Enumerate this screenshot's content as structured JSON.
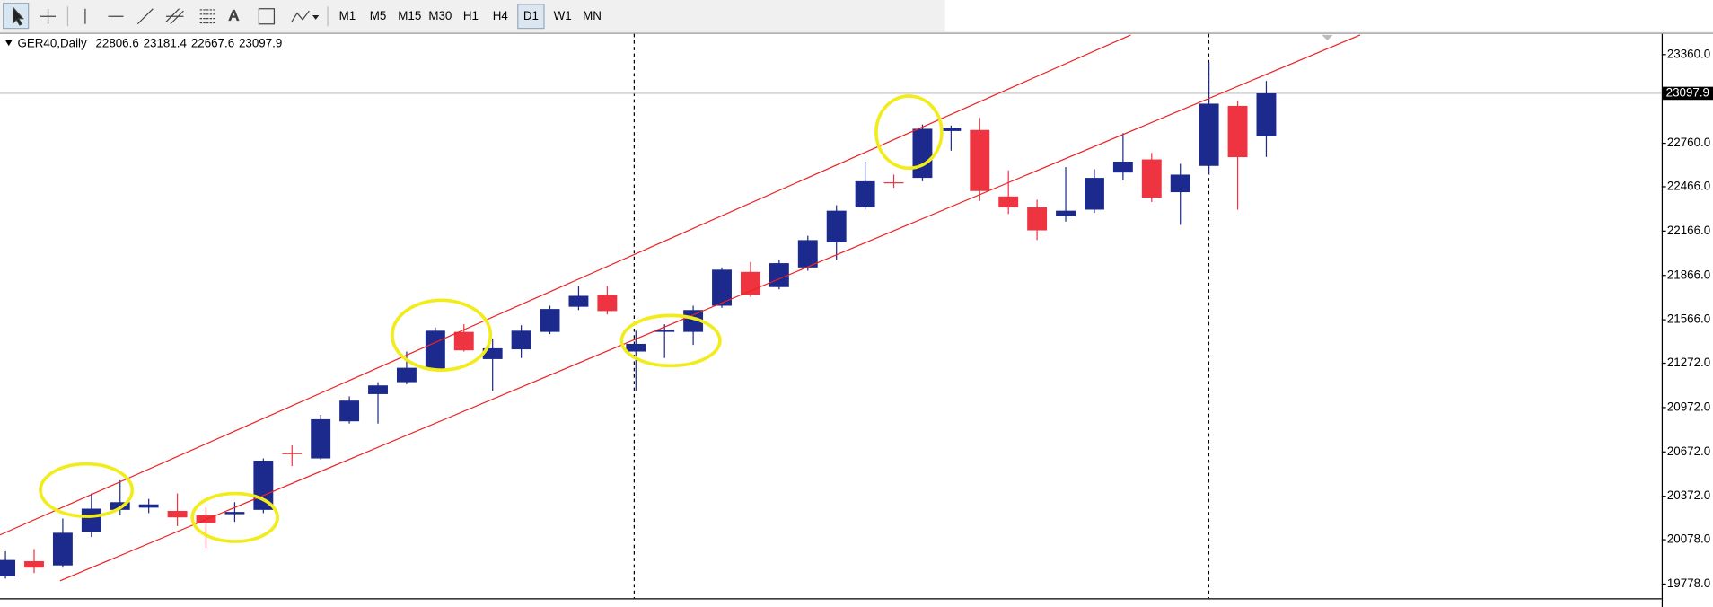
{
  "toolbar": {
    "timeframes": [
      "M1",
      "M5",
      "M15",
      "M30",
      "H1",
      "H4",
      "D1",
      "W1",
      "MN"
    ],
    "selected": "D1"
  },
  "chart_data": {
    "type": "candlestick",
    "title": "GER40,Daily",
    "open": [
      19830,
      19933,
      19904,
      20133,
      20280,
      20295,
      20273,
      20244,
      20251,
      20280,
      20664,
      20628,
      20879,
      21063,
      21144,
      21233,
      21484,
      21300,
      21366,
      21484,
      21654,
      21735,
      21351,
      21484,
      21484,
      21661,
      21890,
      21787,
      21920,
      22090,
      22326,
      22496,
      22526,
      22843,
      22850,
      22400,
      22326,
      22267,
      22311,
      22562,
      22651,
      22429,
      22607,
      23013,
      22806.6
    ],
    "high": [
      20000,
      20015,
      20221,
      20391,
      20480,
      20354,
      20391,
      20295,
      20332,
      20628,
      20716,
      20923,
      21048,
      21144,
      21351,
      21514,
      21536,
      21440,
      21529,
      21661,
      21794,
      21794,
      21492,
      21536,
      21661,
      21920,
      21957,
      21972,
      22134,
      22341,
      22636,
      22548,
      22887,
      22880,
      22932,
      22577,
      22378,
      22599,
      22585,
      22828,
      22695,
      22621,
      23308,
      23050,
      23181.4
    ],
    "low": [
      19815,
      19852,
      19889,
      20096,
      20244,
      20258,
      20170,
      20022,
      20199,
      20258,
      20576,
      20620,
      20864,
      20864,
      21130,
      21218,
      21351,
      21085,
      21307,
      21469,
      21632,
      21602,
      21085,
      21307,
      21396,
      21647,
      21721,
      21772,
      21898,
      21972,
      22311,
      22459,
      22503,
      22710,
      22370,
      22282,
      22105,
      22230,
      22289,
      22511,
      22363,
      22208,
      22548,
      22311,
      22667.6
    ],
    "close": [
      19941,
      19889,
      20125,
      20288,
      20332,
      20317,
      20229,
      20192,
      20266,
      20613,
      20657,
      20893,
      21019,
      21122,
      21241,
      21492,
      21359,
      21373,
      21492,
      21639,
      21728,
      21625,
      21403,
      21499,
      21632,
      21905,
      21735,
      21949,
      22105,
      22304,
      22503,
      22489,
      22858,
      22865,
      22437,
      22326,
      22171,
      22304,
      22526,
      22636,
      22393,
      22548,
      23028,
      22666,
      23097.9
    ],
    "up_color": "#1b2a8c",
    "down_color": "#ee3341",
    "ylim": [
      19682,
      23493
    ],
    "yticks": [
      {
        "value": 19778,
        "label": "19778.0"
      },
      {
        "value": 20078,
        "label": "20078.0"
      },
      {
        "value": 20372,
        "label": "20372.0"
      },
      {
        "value": 20672,
        "label": "20672.0"
      },
      {
        "value": 20972,
        "label": "20972.0"
      },
      {
        "value": 21272,
        "label": "21272.0"
      },
      {
        "value": 21566,
        "label": "21566.0"
      },
      {
        "value": 21866,
        "label": "21866.0"
      },
      {
        "value": 22166,
        "label": "22166.0"
      },
      {
        "value": 22466,
        "label": "22466.0"
      },
      {
        "value": 22760,
        "label": "22760.0"
      },
      {
        "value": 23360,
        "label": "23360.0"
      }
    ]
  }
}
